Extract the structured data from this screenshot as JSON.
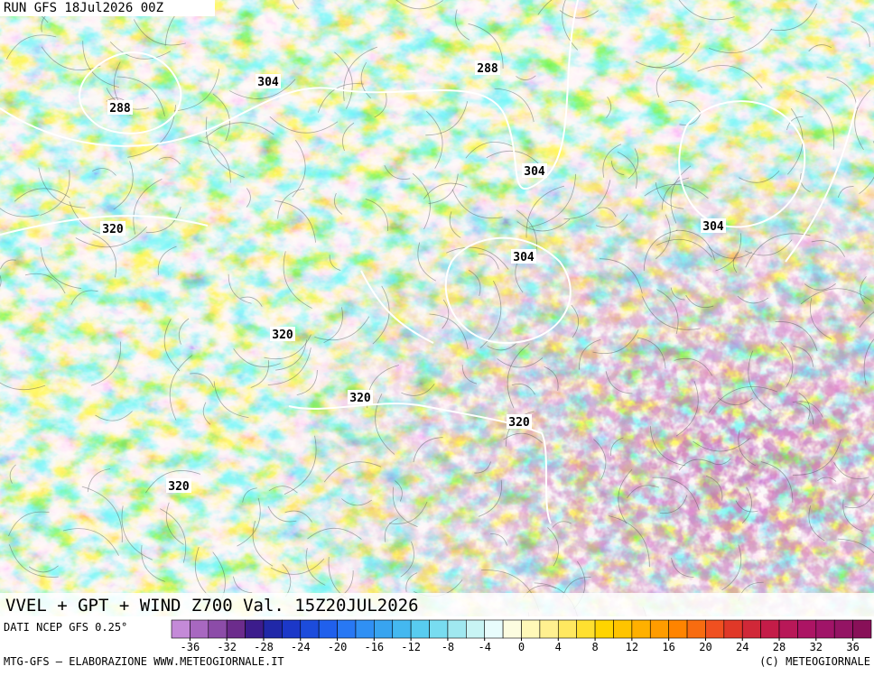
{
  "header": {
    "run": "RUN GFS 18Jul2026 00Z"
  },
  "map": {
    "contour_labels": [
      "288",
      "304",
      "288",
      "304",
      "304",
      "304",
      "320",
      "320",
      "320",
      "320",
      "320"
    ]
  },
  "title": "VVEL + GPT + WIND Z700 Val. 15Z20JUL2026",
  "source": "DATI NCEP GFS 0.25°",
  "colorbar": {
    "colors": [
      "#c48ad8",
      "#a868c0",
      "#8c4ca8",
      "#6c2c8c",
      "#3c1c8c",
      "#2028a8",
      "#1c38c8",
      "#1c4cdc",
      "#2060ec",
      "#2878f4",
      "#3090f4",
      "#38a4f0",
      "#44b8f0",
      "#58ccf0",
      "#78dcf0",
      "#a0e8f0",
      "#c8f4f4",
      "#e8fcfc",
      "#fcfce0",
      "#fff8b8",
      "#fff090",
      "#ffe860",
      "#ffe030",
      "#ffd400",
      "#ffc400",
      "#ffb000",
      "#ff9c00",
      "#ff8400",
      "#f86c10",
      "#f05020",
      "#e03828",
      "#d02838",
      "#c41c48",
      "#b81858",
      "#ac1464",
      "#a01468",
      "#941464",
      "#881058"
    ],
    "ticks": [
      -36,
      -32,
      -28,
      -24,
      -20,
      -16,
      -12,
      -8,
      -4,
      0,
      4,
      8,
      12,
      16,
      20,
      24,
      28,
      32,
      36
    ],
    "range": [
      -38,
      38
    ]
  },
  "footer": {
    "left": "MTG-GFS — ELABORAZIONE WWW.METEOGIORNALE.IT",
    "right": "(C) METEOGIORNALE"
  }
}
